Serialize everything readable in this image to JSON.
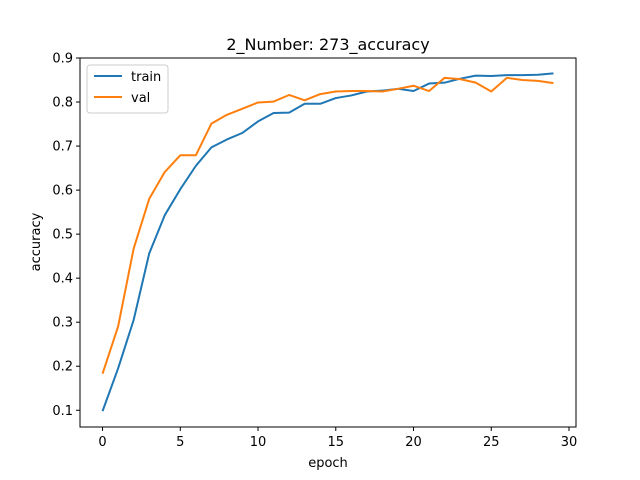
{
  "chart_data": {
    "type": "line",
    "title": "2_Number: 273_accuracy",
    "xlabel": "epoch",
    "ylabel": "accuracy",
    "xlim": [
      -1.45,
      30.45
    ],
    "ylim": [
      0.062,
      0.9
    ],
    "xticks": [
      0,
      5,
      10,
      15,
      20,
      25,
      30
    ],
    "yticks": [
      0.1,
      0.2,
      0.3,
      0.4,
      0.5,
      0.6,
      0.7,
      0.8,
      0.9
    ],
    "xtick_labels": [
      "0",
      "5",
      "10",
      "15",
      "20",
      "25",
      "30"
    ],
    "ytick_labels": [
      "0.1",
      "0.2",
      "0.3",
      "0.4",
      "0.5",
      "0.6",
      "0.7",
      "0.8",
      "0.9"
    ],
    "grid": false,
    "legend_position": "top-left",
    "x": [
      0,
      1,
      2,
      3,
      4,
      5,
      6,
      7,
      8,
      9,
      10,
      11,
      12,
      13,
      14,
      15,
      16,
      17,
      18,
      19,
      20,
      21,
      22,
      23,
      24,
      25,
      26,
      27,
      28,
      29
    ],
    "series": [
      {
        "name": "train",
        "color": "#1f77b4",
        "values": [
          0.098,
          0.195,
          0.305,
          0.456,
          0.543,
          0.602,
          0.655,
          0.697,
          0.715,
          0.73,
          0.756,
          0.775,
          0.776,
          0.796,
          0.796,
          0.809,
          0.815,
          0.824,
          0.826,
          0.83,
          0.825,
          0.842,
          0.844,
          0.853,
          0.86,
          0.859,
          0.861,
          0.861,
          0.862,
          0.865
        ]
      },
      {
        "name": "val",
        "color": "#ff7f0e",
        "values": [
          0.183,
          0.29,
          0.467,
          0.58,
          0.641,
          0.679,
          0.679,
          0.751,
          0.771,
          0.785,
          0.799,
          0.801,
          0.816,
          0.804,
          0.818,
          0.824,
          0.825,
          0.825,
          0.824,
          0.83,
          0.837,
          0.825,
          0.855,
          0.852,
          0.844,
          0.824,
          0.855,
          0.85,
          0.848,
          0.843
        ]
      }
    ]
  }
}
